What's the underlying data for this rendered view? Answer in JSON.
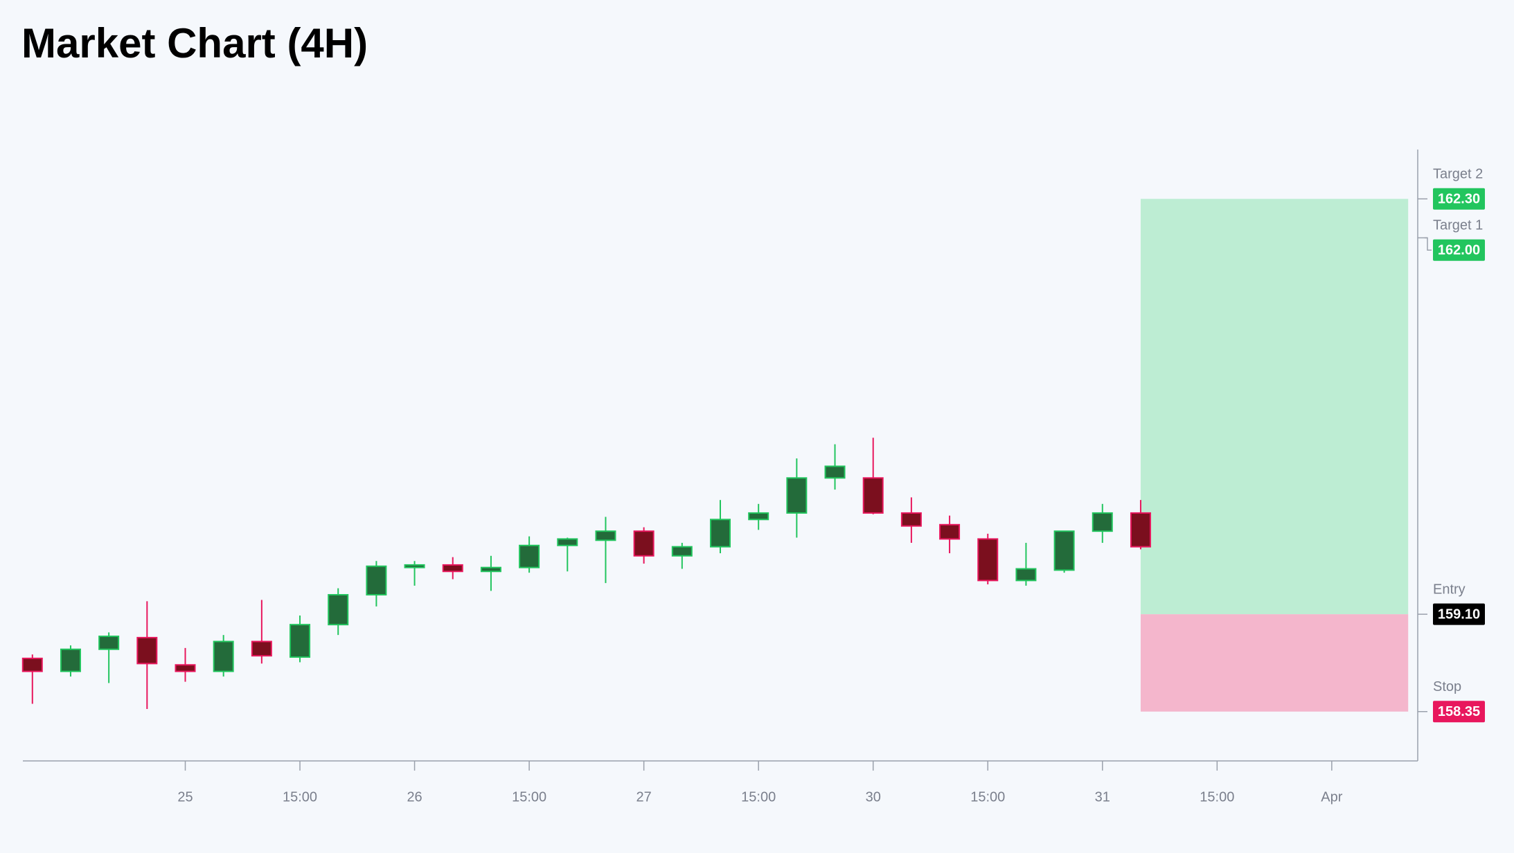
{
  "chart_data": {
    "type": "candlestick",
    "title": "Market Chart (4H)",
    "x": [
      0,
      1,
      2,
      3,
      4,
      5,
      6,
      7,
      8,
      9,
      10,
      11,
      12,
      13,
      14,
      15,
      16,
      17,
      18,
      19,
      20,
      21,
      22,
      23,
      24,
      25,
      26,
      27,
      28,
      29
    ],
    "open": [
      158.76,
      158.66,
      158.83,
      158.92,
      158.71,
      158.66,
      158.89,
      158.77,
      159.02,
      159.25,
      159.46,
      159.48,
      159.43,
      159.46,
      159.63,
      159.67,
      159.74,
      159.55,
      159.62,
      159.83,
      159.88,
      160.15,
      160.15,
      159.88,
      159.79,
      159.68,
      159.36,
      159.44,
      159.74,
      159.88
    ],
    "high": [
      158.79,
      158.86,
      158.96,
      159.2,
      158.84,
      158.94,
      159.21,
      159.09,
      159.3,
      159.51,
      159.51,
      159.54,
      159.55,
      159.7,
      159.69,
      159.85,
      159.77,
      159.65,
      159.98,
      159.95,
      160.3,
      160.41,
      160.46,
      160.0,
      159.86,
      159.72,
      159.65,
      159.74,
      159.95,
      159.98
    ],
    "low": [
      158.41,
      158.62,
      158.57,
      158.37,
      158.58,
      158.62,
      158.72,
      158.73,
      158.94,
      159.16,
      159.32,
      159.37,
      159.28,
      159.42,
      159.43,
      159.34,
      159.49,
      159.45,
      159.57,
      159.75,
      159.69,
      160.06,
      159.87,
      159.65,
      159.57,
      159.33,
      159.32,
      159.42,
      159.65,
      159.6
    ],
    "close": [
      158.66,
      158.83,
      158.93,
      158.72,
      158.66,
      158.89,
      158.78,
      159.02,
      159.25,
      159.47,
      159.48,
      159.43,
      159.46,
      159.63,
      159.68,
      159.74,
      159.55,
      159.62,
      159.83,
      159.88,
      160.15,
      160.24,
      159.88,
      159.78,
      159.68,
      159.36,
      159.45,
      159.74,
      159.88,
      159.62
    ],
    "up_color": "#22c55e",
    "up_fill": "#236b3a",
    "down_color": "#e8175d",
    "down_fill": "#7b0f1e",
    "xlim": [
      -0.25,
      36.25
    ],
    "ylim": [
      157.97,
      162.68
    ],
    "xticks": [
      {
        "value": 4,
        "label": "25"
      },
      {
        "value": 7,
        "label": "15:00"
      },
      {
        "value": 10,
        "label": "26"
      },
      {
        "value": 13,
        "label": "15:00"
      },
      {
        "value": 16,
        "label": "27"
      },
      {
        "value": 19,
        "label": "15:00"
      },
      {
        "value": 22,
        "label": "30"
      },
      {
        "value": 25,
        "label": "15:00"
      },
      {
        "value": 28,
        "label": "31"
      },
      {
        "value": 31,
        "label": "15:00"
      },
      {
        "value": 34,
        "label": "Apr"
      }
    ],
    "zone_x": [
      29,
      36
    ],
    "profit_color": "#bdedd3",
    "loss_color": "#f4b6cc",
    "levels": [
      {
        "name": "Target 2",
        "value": 162.3,
        "value_label": "162.30",
        "color": "#22c55e"
      },
      {
        "name": "Target 1",
        "value": 162.0,
        "value_label": "162.00",
        "color": "#22c55e"
      },
      {
        "name": "Entry",
        "value": 159.1,
        "value_label": "159.10",
        "color": "#000000"
      },
      {
        "name": "Stop",
        "value": 158.35,
        "value_label": "158.35",
        "color": "#e8175d"
      }
    ]
  }
}
